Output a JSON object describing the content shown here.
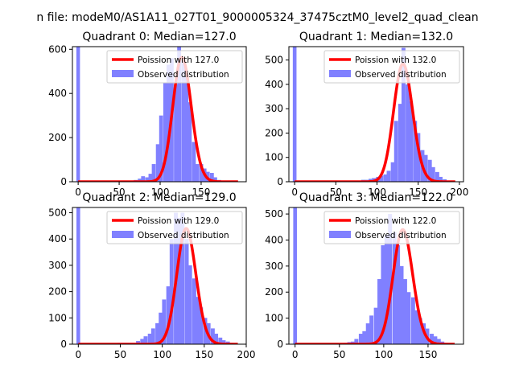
{
  "suptitle": "n file: modeM0/AS1A11_027T01_9000005324_37475cztM0_level2_quad_clean",
  "colors": {
    "hist": "#8080ff",
    "curve": "#ff0000"
  },
  "chart_data": [
    {
      "type": "bar",
      "title": "Quadrant 0: Median=127.0",
      "median": 127,
      "xlim": [
        -7,
        205
      ],
      "ylim": [
        0,
        612
      ],
      "xticks": [
        0,
        50,
        100,
        150
      ],
      "yticks": [
        0,
        200,
        400,
        600
      ],
      "bin_width": 4.4,
      "spike": {
        "x": 0,
        "height": 612
      },
      "hist_x": [
        66,
        70,
        75,
        79,
        84,
        88,
        92,
        97,
        101,
        106,
        110,
        114,
        119,
        123,
        128,
        132,
        136,
        141,
        145,
        150,
        154,
        158,
        163,
        167,
        172
      ],
      "hist_y": [
        5,
        8,
        14,
        25,
        20,
        36,
        80,
        170,
        300,
        450,
        530,
        560,
        440,
        640,
        550,
        480,
        360,
        180,
        80,
        80,
        60,
        45,
        40,
        20,
        8
      ],
      "legend": [
        "Poission with 127.0",
        "Observed distribution"
      ],
      "legend_position": "upper right"
    },
    {
      "type": "bar",
      "title": "Quadrant 1: Median=132.0",
      "median": 132,
      "xlim": [
        -7,
        205
      ],
      "ylim": [
        0,
        555
      ],
      "xticks": [
        0,
        50,
        100,
        150,
        200
      ],
      "yticks": [
        0,
        100,
        200,
        300,
        400,
        500
      ],
      "bin_width": 4.5,
      "spike": {
        "x": 0,
        "height": 555
      },
      "hist_x": [
        60,
        65,
        69,
        74,
        78,
        83,
        87,
        92,
        96,
        101,
        105,
        110,
        114,
        119,
        123,
        128,
        132,
        137,
        141,
        146,
        150,
        155,
        159,
        164,
        168,
        173,
        177,
        182,
        186,
        191
      ],
      "hist_y": [
        3,
        3,
        5,
        5,
        5,
        8,
        8,
        12,
        15,
        20,
        25,
        30,
        45,
        80,
        250,
        320,
        550,
        400,
        330,
        250,
        200,
        130,
        110,
        90,
        60,
        40,
        20,
        10,
        5,
        3
      ],
      "legend": [
        "Poission with 132.0",
        "Observed distribution"
      ],
      "legend_position": "upper right"
    },
    {
      "type": "bar",
      "title": "Quadrant 2: Median=129.0",
      "median": 129,
      "xlim": [
        -7,
        200
      ],
      "ylim": [
        0,
        520
      ],
      "xticks": [
        0,
        50,
        100,
        150,
        200
      ],
      "yticks": [
        0,
        100,
        200,
        300,
        400,
        500
      ],
      "bin_width": 4.4,
      "spike": {
        "x": 0,
        "height": 520
      },
      "hist_x": [
        49,
        54,
        58,
        63,
        67,
        71,
        76,
        80,
        85,
        89,
        94,
        98,
        102,
        107,
        111,
        116,
        120,
        124,
        129,
        133,
        138,
        142,
        146,
        151,
        155,
        160,
        164,
        169,
        173,
        178,
        182,
        186
      ],
      "hist_y": [
        5,
        5,
        5,
        5,
        5,
        12,
        20,
        30,
        40,
        60,
        80,
        120,
        170,
        220,
        400,
        500,
        480,
        500,
        400,
        300,
        250,
        180,
        140,
        100,
        80,
        60,
        40,
        25,
        15,
        10,
        5,
        3
      ],
      "legend": [
        "Poission with 129.0",
        "Observed distribution"
      ],
      "legend_position": "upper right"
    },
    {
      "type": "bar",
      "title": "Quadrant 3: Median=122.0",
      "median": 122,
      "xlim": [
        -7,
        190
      ],
      "ylim": [
        0,
        525
      ],
      "xticks": [
        0,
        50,
        100,
        150
      ],
      "yticks": [
        0,
        100,
        200,
        300,
        400,
        500
      ],
      "bin_width": 4.2,
      "spike": {
        "x": 0,
        "height": 525
      },
      "hist_x": [
        57,
        61,
        65,
        69,
        74,
        78,
        82,
        86,
        91,
        95,
        99,
        103,
        107,
        112,
        116,
        120,
        124,
        128,
        133,
        137,
        141,
        145,
        149,
        154,
        158,
        162,
        166,
        170
      ],
      "hist_y": [
        5,
        8,
        10,
        20,
        40,
        50,
        80,
        110,
        140,
        250,
        380,
        420,
        500,
        430,
        380,
        300,
        250,
        200,
        180,
        130,
        100,
        80,
        60,
        40,
        30,
        20,
        10,
        5
      ],
      "legend": [
        "Poission with 122.0",
        "Observed distribution"
      ],
      "legend_position": "upper right"
    }
  ]
}
